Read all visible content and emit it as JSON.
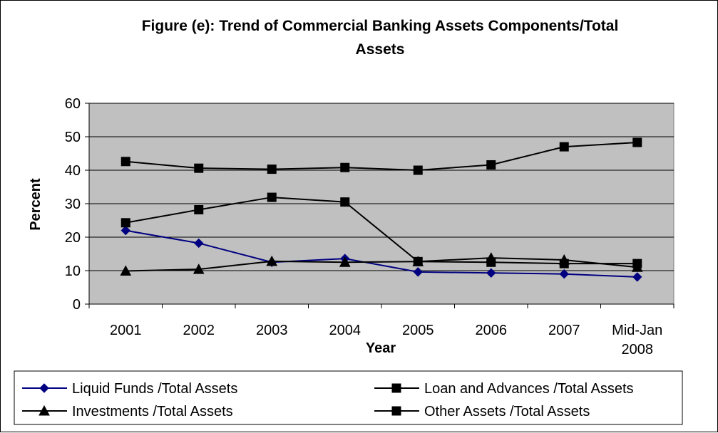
{
  "chart_data": {
    "type": "line",
    "title_lines": [
      "Figure (e): Trend of Commercial Banking Assets Components/Total",
      "Assets"
    ],
    "xlabel": "Year",
    "ylabel": "Percent",
    "categories": [
      "2001",
      "2002",
      "2003",
      "2004",
      "2005",
      "2006",
      "2007",
      "Mid-Jan 2008"
    ],
    "category_lines": [
      [
        "2001"
      ],
      [
        "2002"
      ],
      [
        "2003"
      ],
      [
        "2004"
      ],
      [
        "2005"
      ],
      [
        "2006"
      ],
      [
        "2007"
      ],
      [
        "Mid-Jan",
        "2008"
      ]
    ],
    "ylim": [
      0,
      60
    ],
    "yticks": [
      "0",
      "10",
      "20",
      "30",
      "40",
      "50",
      "60"
    ],
    "grid": true,
    "plot_background": "#c0c0c0",
    "legend_position": "bottom",
    "series": [
      {
        "name": "Liquid Funds /Total Assets",
        "color": "#000080",
        "marker": "diamond",
        "values": [
          22.0,
          18.2,
          12.5,
          13.6,
          9.6,
          9.3,
          9.0,
          8.1
        ]
      },
      {
        "name": "Loan and Advances /Total Assets",
        "color": "#000000",
        "marker": "square",
        "values": [
          42.6,
          40.6,
          40.3,
          40.8,
          40.0,
          41.6,
          47.0,
          48.3
        ]
      },
      {
        "name": "Investments /Total Assets",
        "color": "#000000",
        "marker": "triangle",
        "values": [
          9.9,
          10.4,
          12.8,
          12.5,
          12.7,
          13.8,
          13.2,
          11.0
        ]
      },
      {
        "name": "Other Assets /Total Assets",
        "color": "#000000",
        "marker": "square",
        "values": [
          24.3,
          28.2,
          31.9,
          30.5,
          12.7,
          12.5,
          12.1,
          12.1
        ]
      }
    ]
  }
}
